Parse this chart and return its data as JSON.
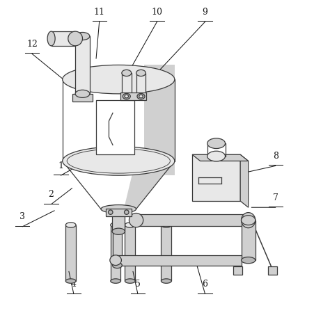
{
  "bg_color": "#ffffff",
  "lc": "#3a3a3a",
  "lw": 0.9,
  "figsize": [
    4.74,
    4.63
  ],
  "dpi": 100,
  "label_fs": 9,
  "labels_info": {
    "1": [
      0.175,
      0.455,
      0.255,
      0.5
    ],
    "2": [
      0.145,
      0.365,
      0.21,
      0.415
    ],
    "3": [
      0.055,
      0.295,
      0.155,
      0.345
    ],
    "4": [
      0.215,
      0.085,
      0.2,
      0.155
    ],
    "5": [
      0.415,
      0.085,
      0.4,
      0.155
    ],
    "6": [
      0.625,
      0.085,
      0.595,
      0.19
    ],
    "7": [
      0.845,
      0.355,
      0.77,
      0.355
    ],
    "8": [
      0.845,
      0.485,
      0.755,
      0.465
    ],
    "9": [
      0.625,
      0.935,
      0.47,
      0.77
    ],
    "10": [
      0.475,
      0.935,
      0.385,
      0.775
    ],
    "11": [
      0.295,
      0.935,
      0.285,
      0.82
    ],
    "12": [
      0.085,
      0.835,
      0.195,
      0.745
    ]
  }
}
